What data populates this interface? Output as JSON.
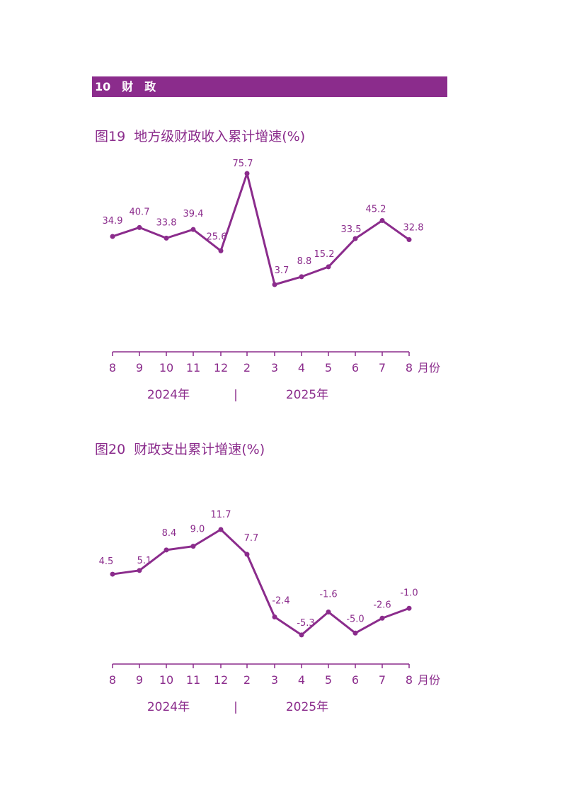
{
  "section": {
    "label": "10　财　政",
    "color": "#8B2C8C"
  },
  "chart_data": [
    {
      "type": "line",
      "title": "图19  地方级财政收入累计增速(%)",
      "categories": [
        "8",
        "9",
        "10",
        "11",
        "12",
        "2",
        "3",
        "4",
        "5",
        "6",
        "7",
        "8"
      ],
      "values": [
        34.9,
        40.7,
        33.8,
        39.4,
        25.6,
        75.7,
        3.7,
        8.8,
        15.2,
        33.5,
        45.2,
        32.8
      ],
      "labels": [
        "34.9",
        "40.7",
        "33.8",
        "39.4",
        "25.6",
        "75.7",
        "3.7",
        "8.8",
        "15.2",
        "33.5",
        "45.2",
        "32.8"
      ],
      "xunit": "月份",
      "year_labels": [
        "2024年",
        "|",
        "2025年"
      ],
      "color": "#8B2C8C",
      "grid": false
    },
    {
      "type": "line",
      "title": "图20  财政支出累计增速(%)",
      "categories": [
        "8",
        "9",
        "10",
        "11",
        "12",
        "2",
        "3",
        "4",
        "5",
        "6",
        "7",
        "8"
      ],
      "values": [
        4.5,
        5.1,
        8.4,
        9.0,
        11.7,
        7.7,
        -2.4,
        -5.3,
        -1.6,
        -5.0,
        -2.6,
        -1.0
      ],
      "labels": [
        "4.5",
        "5.1",
        "8.4",
        "9.0",
        "11.7",
        "7.7",
        "-2.4",
        "-5.3",
        "-1.6",
        "-5.0",
        "-2.6",
        "-1.0"
      ],
      "xunit": "月份",
      "year_labels": [
        "2024年",
        "|",
        "2025年"
      ],
      "color": "#8B2C8C",
      "grid": false
    }
  ]
}
